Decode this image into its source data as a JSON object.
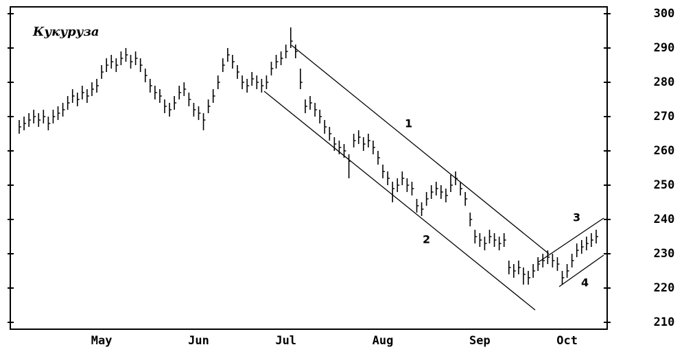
{
  "chart_data": {
    "type": "ohlc",
    "title": "Кукуруза",
    "categories": [
      null,
      null,
      null,
      null,
      null,
      null,
      null,
      null,
      null,
      null,
      null,
      null,
      null,
      null,
      null,
      null,
      null,
      "May",
      null,
      null,
      null,
      null,
      null,
      null,
      null,
      null,
      null,
      null,
      null,
      null,
      null,
      null,
      null,
      null,
      null,
      null,
      null,
      "Jun",
      null,
      null,
      null,
      null,
      null,
      null,
      null,
      null,
      null,
      null,
      null,
      null,
      null,
      null,
      null,
      null,
      null,
      "Jul",
      null,
      null,
      null,
      null,
      null,
      null,
      null,
      null,
      null,
      null,
      null,
      null,
      null,
      null,
      null,
      null,
      null,
      null,
      null,
      "Aug",
      null,
      null,
      null,
      null,
      null,
      null,
      null,
      null,
      null,
      null,
      null,
      null,
      null,
      null,
      null,
      null,
      null,
      null,
      null,
      "Sep",
      null,
      null,
      null,
      null,
      null,
      null,
      null,
      null,
      null,
      null,
      null,
      null,
      null,
      null,
      null,
      null,
      null,
      "Oct",
      null,
      null,
      null,
      null,
      null,
      null
    ],
    "high": [
      269,
      270,
      271,
      272,
      271,
      272,
      270,
      272,
      273,
      274,
      276,
      278,
      277,
      279,
      278,
      280,
      281,
      285,
      287,
      288,
      287,
      289,
      290,
      288,
      289,
      287,
      284,
      281,
      279,
      278,
      275,
      274,
      276,
      279,
      280,
      277,
      274,
      273,
      271,
      275,
      278,
      282,
      287,
      290,
      288,
      285,
      282,
      281,
      283,
      282,
      281,
      282,
      286,
      288,
      289,
      291,
      296,
      291,
      284,
      275,
      276,
      274,
      272,
      269,
      267,
      264,
      263,
      262,
      259,
      265,
      266,
      264,
      265,
      263,
      260,
      256,
      254,
      251,
      252,
      254,
      252,
      251,
      246,
      245,
      248,
      250,
      251,
      250,
      249,
      253,
      254,
      251,
      248,
      242,
      237,
      236,
      235,
      237,
      236,
      235,
      236,
      228,
      227,
      228,
      226,
      225,
      227,
      229,
      230,
      231,
      230,
      229,
      225,
      227,
      230,
      233,
      234,
      235,
      236,
      237
    ],
    "low": [
      265,
      266,
      267,
      268,
      267,
      268,
      266,
      268,
      269,
      270,
      272,
      274,
      273,
      275,
      274,
      276,
      277,
      281,
      283,
      284,
      283,
      285,
      286,
      284,
      285,
      283,
      280,
      277,
      275,
      274,
      271,
      270,
      272,
      275,
      276,
      273,
      270,
      269,
      266,
      271,
      274,
      278,
      283,
      286,
      284,
      281,
      278,
      277,
      279,
      278,
      277,
      278,
      282,
      284,
      285,
      287,
      290,
      287,
      278,
      271,
      272,
      270,
      268,
      265,
      263,
      260,
      259,
      258,
      252,
      261,
      262,
      260,
      261,
      259,
      256,
      252,
      250,
      245,
      248,
      250,
      248,
      247,
      242,
      241,
      244,
      246,
      247,
      246,
      245,
      248,
      250,
      247,
      244,
      238,
      233,
      232,
      231,
      233,
      232,
      231,
      232,
      224,
      223,
      224,
      221,
      221,
      223,
      225,
      226,
      227,
      226,
      225,
      221,
      223,
      226,
      229,
      230,
      231,
      232,
      233
    ],
    "close": [
      267,
      268,
      269,
      270,
      269,
      270,
      268,
      270,
      271,
      272,
      274,
      276,
      275,
      277,
      276,
      278,
      279,
      283,
      285,
      286,
      285,
      287,
      288,
      286,
      287,
      285,
      282,
      279,
      277,
      276,
      273,
      272,
      274,
      277,
      278,
      275,
      272,
      271,
      269,
      273,
      276,
      280,
      285,
      288,
      286,
      283,
      280,
      279,
      281,
      280,
      279,
      280,
      284,
      286,
      287,
      289,
      292,
      289,
      280,
      273,
      274,
      272,
      270,
      267,
      265,
      262,
      261,
      260,
      257,
      263,
      264,
      262,
      263,
      261,
      258,
      254,
      252,
      249,
      250,
      252,
      250,
      249,
      244,
      243,
      246,
      248,
      249,
      248,
      247,
      250,
      252,
      249,
      246,
      240,
      235,
      234,
      233,
      235,
      234,
      233,
      234,
      226,
      225,
      226,
      224,
      223,
      225,
      227,
      228,
      229,
      228,
      227,
      223,
      225,
      228,
      231,
      232,
      233,
      234,
      235
    ],
    "color": "#000000",
    "ylim": [
      208,
      302
    ],
    "yticks": [
      210,
      220,
      230,
      240,
      250,
      260,
      270,
      280,
      290,
      300
    ],
    "annotations": [
      "1",
      "2",
      "3",
      "4"
    ]
  }
}
